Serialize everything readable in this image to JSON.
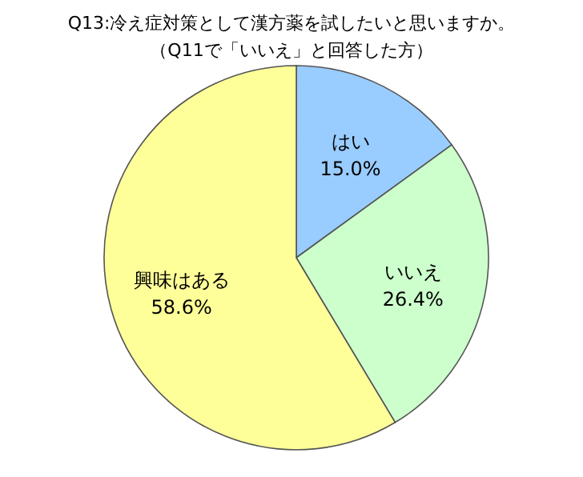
{
  "chart_data": {
    "type": "pie",
    "title": "Q13:冷え症対策として漢方薬を試したいと思いますか。",
    "subtitle": "（Q11で「いいえ」と回答した方）",
    "categories": [
      "はい",
      "いいえ",
      "興味はある"
    ],
    "values": [
      15.0,
      26.4,
      58.6
    ],
    "value_labels": [
      "15.0%",
      "26.4%",
      "58.6%"
    ],
    "colors": [
      "#99ccff",
      "#ccffcc",
      "#ffff99"
    ]
  }
}
